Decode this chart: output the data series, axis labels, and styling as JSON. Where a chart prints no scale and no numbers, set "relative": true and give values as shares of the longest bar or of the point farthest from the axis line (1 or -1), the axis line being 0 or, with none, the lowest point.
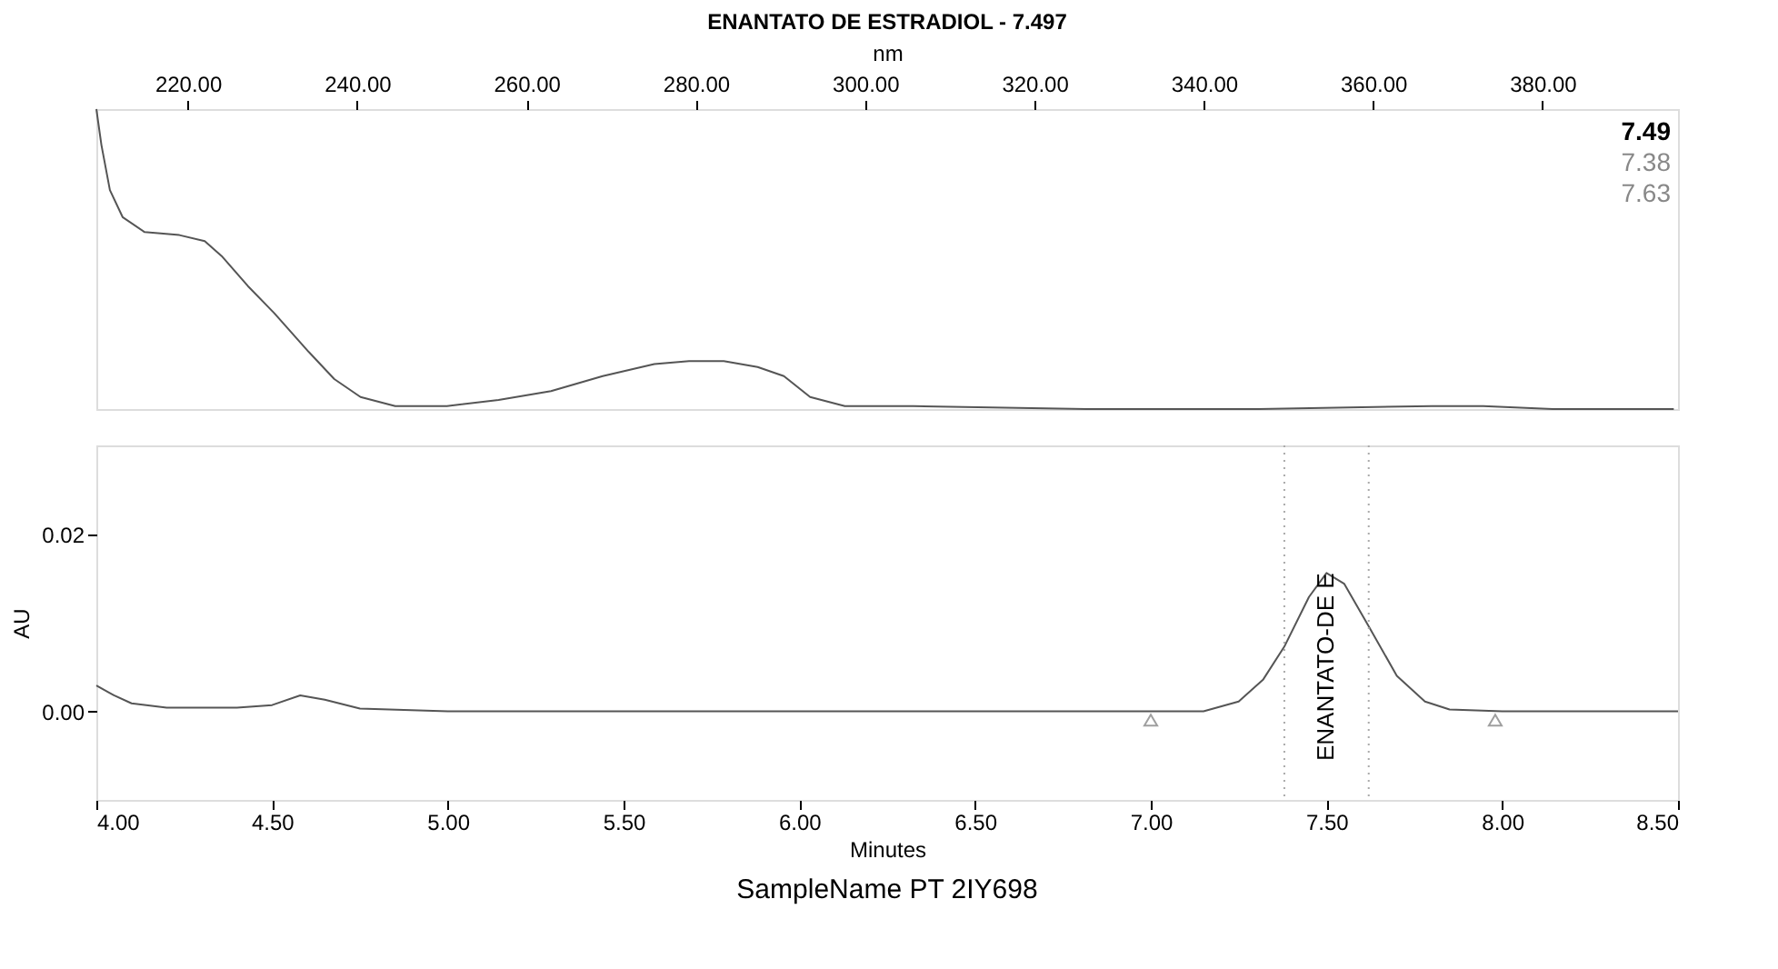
{
  "chart_data": [
    {
      "type": "line",
      "title": "ENANTATO DE ESTRADIOL - 7.497",
      "xlabel": "nm",
      "relative": true,
      "color": "#555555",
      "grid": false,
      "xlim": [
        209.2,
        396
      ],
      "xticks": [
        {
          "value": 220,
          "label": "220.00"
        },
        {
          "value": 240,
          "label": "240.00"
        },
        {
          "value": 260,
          "label": "260.00"
        },
        {
          "value": 280,
          "label": "280.00"
        },
        {
          "value": 300,
          "label": "300.00"
        },
        {
          "value": 320,
          "label": "320.00"
        },
        {
          "value": 340,
          "label": "340.00"
        },
        {
          "value": 360,
          "label": "360.00"
        },
        {
          "value": 380,
          "label": "380.00"
        }
      ],
      "x": [
        209.2,
        209.8,
        210.8,
        212.3,
        214.9,
        219,
        222,
        224,
        227.1,
        230.2,
        234.3,
        237.3,
        240.4,
        244.5,
        250.6,
        256.7,
        262.9,
        269,
        275.1,
        279.2,
        283.3,
        287.3,
        290.4,
        293.5,
        297.6,
        305.7,
        326.1,
        346.5,
        366.9,
        373,
        381.2,
        395.5
      ],
      "values": [
        1.0,
        0.88,
        0.73,
        0.64,
        0.59,
        0.58,
        0.56,
        0.51,
        0.41,
        0.32,
        0.19,
        0.1,
        0.04,
        0.01,
        0.01,
        0.03,
        0.06,
        0.11,
        0.15,
        0.16,
        0.16,
        0.14,
        0.11,
        0.04,
        0.01,
        0.01,
        0,
        0,
        0.01,
        0.01,
        0,
        0
      ],
      "annotations": [
        "7.49",
        "7.38",
        "7.63"
      ]
    },
    {
      "type": "line",
      "xlabel": "Minutes",
      "ylabel": "AU",
      "grid": false,
      "xlim": [
        4.0,
        8.5
      ],
      "xticks": [
        {
          "value": 4.0,
          "label": "4.00"
        },
        {
          "value": 4.5,
          "label": "4.50"
        },
        {
          "value": 5.0,
          "label": "5.00"
        },
        {
          "value": 5.5,
          "label": "5.50"
        },
        {
          "value": 6.0,
          "label": "6.00"
        },
        {
          "value": 6.5,
          "label": "6.50"
        },
        {
          "value": 7.0,
          "label": "7.00"
        },
        {
          "value": 7.5,
          "label": "7.50"
        },
        {
          "value": 8.0,
          "label": "8.00"
        },
        {
          "value": 8.5,
          "label": "8.50"
        }
      ],
      "ylim": [
        -0.01,
        0.03
      ],
      "yticks": [
        {
          "value": 0,
          "label": "0.00"
        },
        {
          "value": 0.02,
          "label": "0.02"
        }
      ],
      "series": [
        {
          "type": "line",
          "color": "#555555",
          "x": [
            4.0,
            4.05,
            4.1,
            4.2,
            4.4,
            4.5,
            4.58,
            4.65,
            4.75,
            5.0,
            7.0,
            7.15,
            7.25,
            7.32,
            7.38,
            7.45,
            7.5,
            7.55,
            7.62,
            7.7,
            7.78,
            7.85,
            8.0,
            8.5
          ],
          "values": [
            0.0029,
            0.0018,
            0.0009,
            0.0004,
            0.0004,
            0.0007,
            0.0018,
            0.0013,
            0.0003,
            0,
            0,
            0,
            0.0011,
            0.0036,
            0.0073,
            0.0129,
            0.0156,
            0.0144,
            0.0096,
            0.004,
            0.0011,
            0.0002,
            0,
            0
          ]
        },
        {
          "type": "scatter",
          "marker": "triangle",
          "color": "#777777",
          "x": [
            7.0,
            7.98
          ],
          "values": [
            -0.001,
            -0.001
          ]
        }
      ],
      "ref_lines": [
        {
          "axis": "x",
          "value": 7.38,
          "color": "#aaaaaa",
          "line_style": "dotted"
        },
        {
          "axis": "x",
          "value": 7.62,
          "color": "#aaaaaa",
          "line_style": "dotted"
        }
      ],
      "annotations": [
        {
          "text": "ENANTATO-DE E",
          "x": 7.5,
          "y": 0.0156
        },
        "SampleName PT 2IY698"
      ]
    }
  ]
}
